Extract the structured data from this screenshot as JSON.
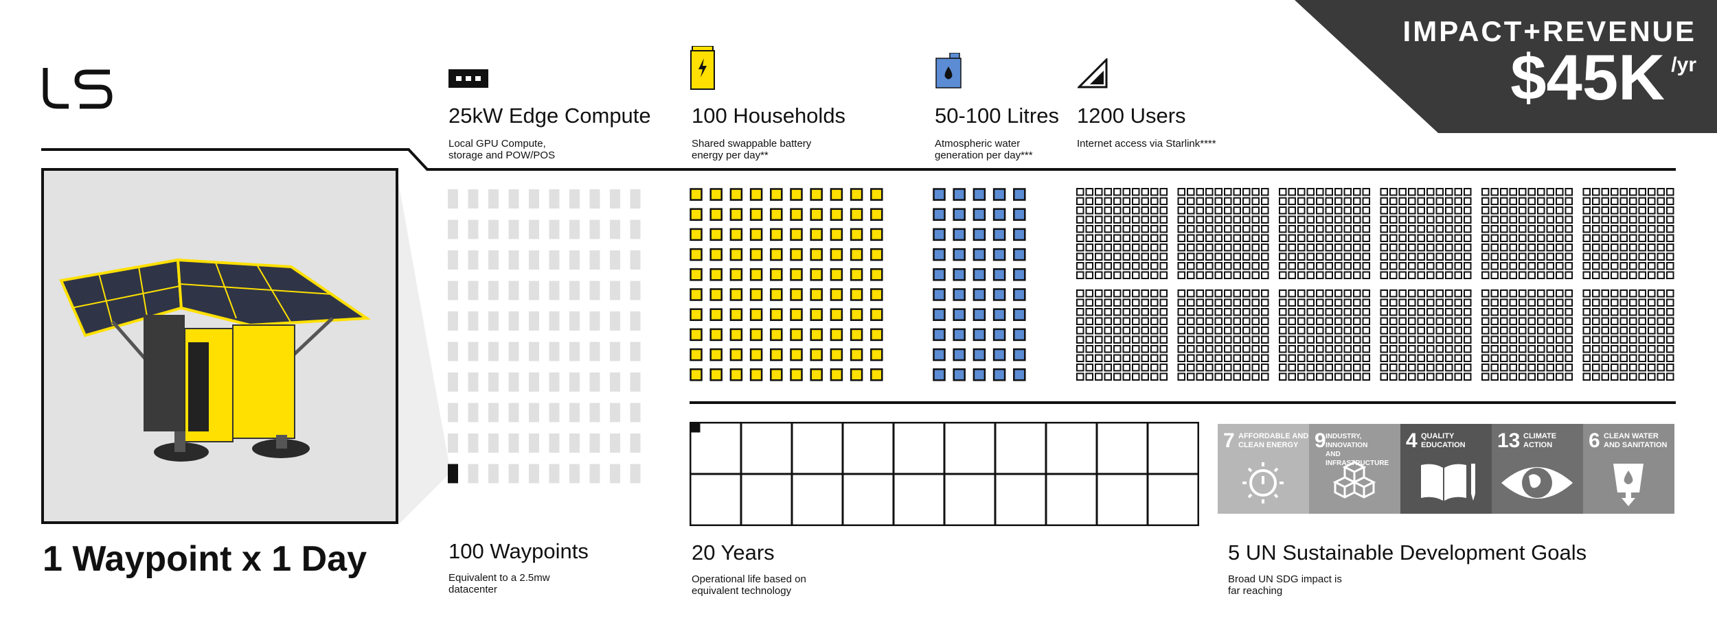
{
  "banner": {
    "title": "IMPACT+REVENUE",
    "value": "$45K",
    "unit": "/yr"
  },
  "stats": [
    {
      "title": "25kW Edge Compute",
      "desc": "Local GPU Compute,\nstorage and POW/POS",
      "icon": "gpu-icon"
    },
    {
      "title": "100 Households",
      "desc": "Shared swappable battery\nenergy per day**",
      "icon": "battery-icon"
    },
    {
      "title": "50-100 Litres",
      "desc": "Atmospheric water\ngeneration per day***",
      "icon": "water-icon"
    },
    {
      "title": "1200 Users",
      "desc": "Internet access via Starlink****",
      "icon": "signal-icon"
    }
  ],
  "bottom": [
    {
      "title": "100 Waypoints",
      "desc": "Equivalent to a 2.5mw\ndatacenter"
    },
    {
      "title": "20 Years",
      "desc": "Operational life based on\nequivalent technology"
    },
    {
      "title": "5 UN Sustainable Development Goals",
      "desc": "Broad UN SDG impact is\nfar reaching"
    }
  ],
  "main_title": "1 Waypoint x 1 Day",
  "sdgs": [
    {
      "num": "7",
      "label": "AFFORDABLE AND\nCLEAN ENERGY",
      "icon": "sun-power-icon",
      "color": "#b7b7b7"
    },
    {
      "num": "9",
      "label": "INDUSTRY, INNOVATION\nAND INFRASTRUCTURE",
      "icon": "cubes-icon",
      "color": "#9a9a9a"
    },
    {
      "num": "4",
      "label": "QUALITY\nEDUCATION",
      "icon": "book-icon",
      "color": "#555555"
    },
    {
      "num": "13",
      "label": "CLIMATE\nACTION",
      "icon": "eye-globe-icon",
      "color": "#6f6f6f"
    },
    {
      "num": "6",
      "label": "CLEAN WATER\nAND SANITATION",
      "icon": "water-drop-icon",
      "color": "#8c8c8c"
    }
  ],
  "counts": {
    "waypoints": 100,
    "waypoints_filled": 1,
    "households": 100,
    "litres": 50,
    "users": 1200,
    "years": 20,
    "years_filled": 1
  },
  "colors": {
    "yellow": "#ffe000",
    "blue": "#5b8cd4",
    "dark": "#111111",
    "gray_bar": "#e0e0e0"
  }
}
